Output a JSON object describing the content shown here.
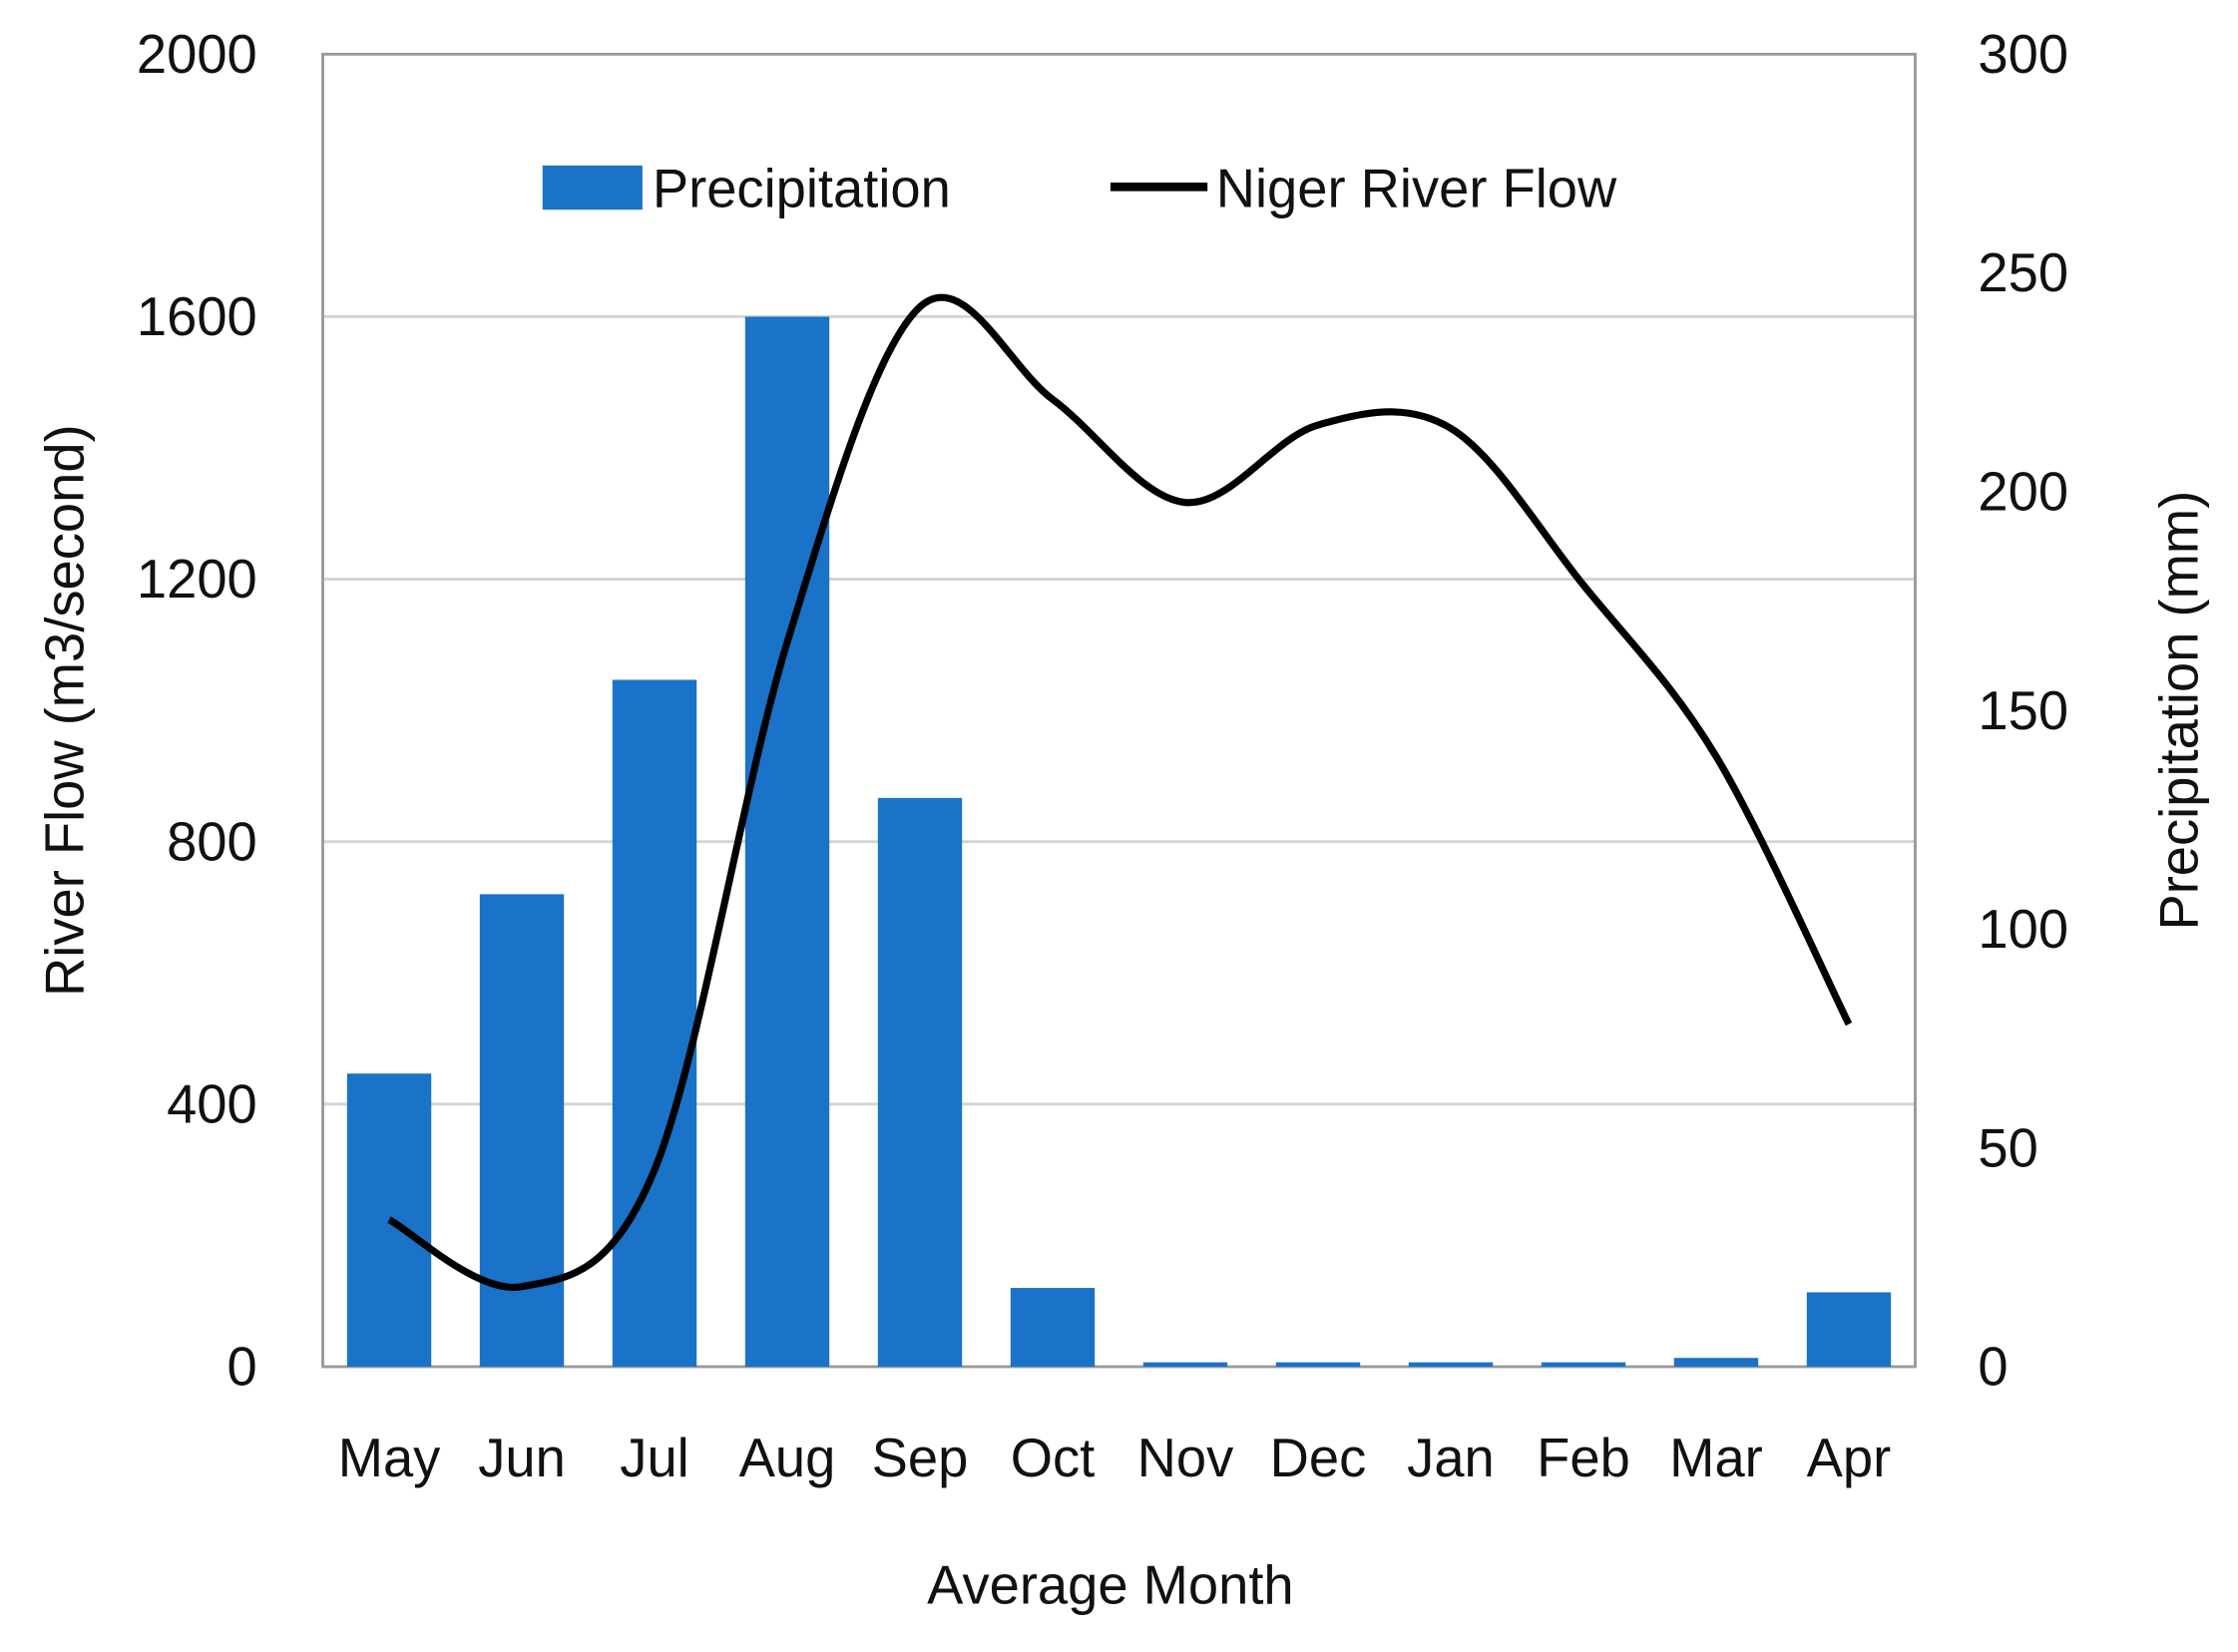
{
  "chart_data": {
    "type": "bar+line",
    "categories": [
      "May",
      "Jun",
      "Jul",
      "Aug",
      "Sep",
      "Oct",
      "Nov",
      "Dec",
      "Jan",
      "Feb",
      "Mar",
      "Apr"
    ],
    "series": [
      {
        "name": "Precipitation",
        "type": "bar",
        "axis": "right",
        "color": "#1a72c9",
        "values": [
          67,
          108,
          157,
          240,
          130,
          18,
          1,
          1,
          1,
          1,
          2,
          17
        ]
      },
      {
        "name": "Niger River Flow",
        "type": "line",
        "axis": "left",
        "color": "#000000",
        "values": [
          224,
          122,
          300,
          1104,
          1615,
          1474,
          1317,
          1435,
          1430,
          1191,
          930,
          522
        ]
      }
    ],
    "xlabel": "Average Month",
    "ylabel": "River Flow (m3/second)",
    "y2label": "Precipitation (mm)",
    "ylim": [
      0,
      2000
    ],
    "y2lim": [
      0,
      300
    ],
    "yticks": [
      "0",
      "400",
      "800",
      "1200",
      "1600",
      "2000"
    ],
    "y2ticks": [
      "0",
      "50",
      "100",
      "150",
      "200",
      "250",
      "300"
    ],
    "grid": true,
    "legend": "top-center"
  }
}
